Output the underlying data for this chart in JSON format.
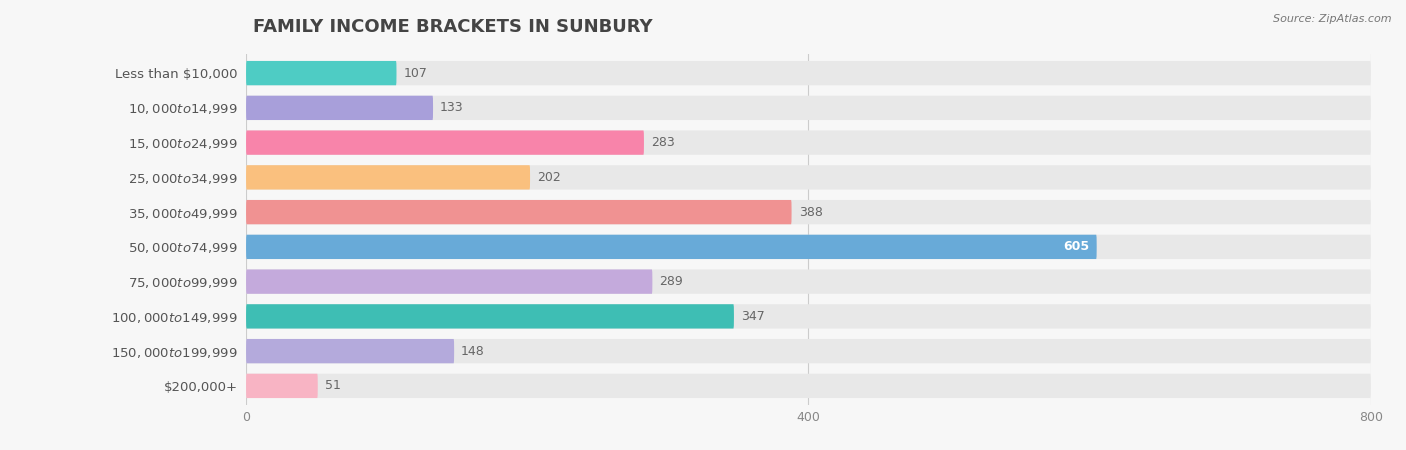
{
  "title": "FAMILY INCOME BRACKETS IN SUNBURY",
  "source": "Source: ZipAtlas.com",
  "categories": [
    "Less than $10,000",
    "$10,000 to $14,999",
    "$15,000 to $24,999",
    "$25,000 to $34,999",
    "$35,000 to $49,999",
    "$50,000 to $74,999",
    "$75,000 to $99,999",
    "$100,000 to $149,999",
    "$150,000 to $199,999",
    "$200,000+"
  ],
  "values": [
    107,
    133,
    283,
    202,
    388,
    605,
    289,
    347,
    148,
    51
  ],
  "colors": [
    "#4ECCC4",
    "#A89FDA",
    "#F884AA",
    "#FAC07E",
    "#F09292",
    "#68AAD8",
    "#C4AADC",
    "#3EBEB4",
    "#B4AADC",
    "#F8B4C4"
  ],
  "xlim": [
    0,
    800
  ],
  "xticks": [
    0,
    400,
    800
  ],
  "background_color": "#f7f7f7",
  "bar_bg_color": "#e8e8e8",
  "title_fontsize": 13,
  "label_fontsize": 9.5,
  "value_fontsize": 9,
  "bar_height": 0.7,
  "value_605_inside": true
}
